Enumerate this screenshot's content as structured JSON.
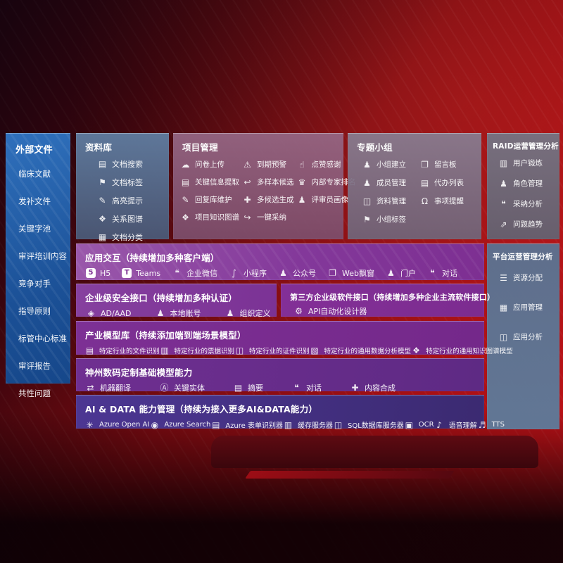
{
  "colors": {
    "background_red": "#a80f14",
    "sidebar_blue": "#2a66b0",
    "row_purple": "#7d2f92",
    "aidata_indigo": "#43307f",
    "panel_slate": "#5f7b99"
  },
  "sidebar": {
    "title": "外部文件",
    "items": [
      {
        "label": "临床文献"
      },
      {
        "label": "发补文件"
      },
      {
        "label": "关键字池"
      },
      {
        "label": "审评培训内容"
      },
      {
        "label": "竞争对手"
      },
      {
        "label": "指导原则"
      },
      {
        "label": "标管中心标准"
      },
      {
        "label": "审评报告"
      },
      {
        "label": "共性问题"
      }
    ]
  },
  "library": {
    "title": "资料库",
    "items": [
      {
        "icon": "▤",
        "icon_name": "doc-search-icon",
        "label": "文档搜索"
      },
      {
        "icon": "⚑",
        "icon_name": "doc-tag-icon",
        "label": "文档标签"
      },
      {
        "icon": "✎",
        "icon_name": "highlight-icon",
        "label": "高亮提示"
      },
      {
        "icon": "❖",
        "icon_name": "relation-graph-icon",
        "label": "关系图谱"
      },
      {
        "icon": "▦",
        "icon_name": "doc-classify-icon",
        "label": "文档分类"
      }
    ]
  },
  "project": {
    "title": "项目管理",
    "items": [
      {
        "icon": "☁",
        "icon_name": "upload-cloud-icon",
        "label": "问卷上传"
      },
      {
        "icon": "⚠",
        "icon_name": "alarm-icon",
        "label": "到期预警"
      },
      {
        "icon": "☝",
        "icon_name": "thumbs-up-icon",
        "label": "点赞感谢"
      },
      {
        "icon": "▤",
        "icon_name": "info-extract-icon",
        "label": "关键信息提取"
      },
      {
        "icon": "↩",
        "icon_name": "multi-sample-icon",
        "label": "多样本候选"
      },
      {
        "icon": "♛",
        "icon_name": "expert-ranking-icon",
        "label": "内部专家排名"
      },
      {
        "icon": "✎",
        "icon_name": "reply-maintain-icon",
        "label": "回复库维护"
      },
      {
        "icon": "✚",
        "icon_name": "multi-generate-icon",
        "label": "多候选生成"
      },
      {
        "icon": "♟",
        "icon_name": "reviewer-portrait-icon",
        "label": "评审员画像"
      },
      {
        "icon": "❖",
        "icon_name": "project-knowledge-graph-icon",
        "label": "项目知识图谱"
      },
      {
        "icon": "↪",
        "icon_name": "one-click-adopt-icon",
        "label": "一键采纳"
      }
    ]
  },
  "topic": {
    "title": "专题小组",
    "items": [
      {
        "icon": "♟",
        "icon_name": "group-create-icon",
        "label": "小组建立"
      },
      {
        "icon": "❐",
        "icon_name": "message-board-icon",
        "label": "留言板"
      },
      {
        "icon": "♟",
        "icon_name": "member-manage-icon",
        "label": "成员管理"
      },
      {
        "icon": "▤",
        "icon_name": "todo-list-icon",
        "label": "代办列表"
      },
      {
        "icon": "◫",
        "icon_name": "material-manage-icon",
        "label": "资料管理"
      },
      {
        "icon": "Ω",
        "icon_name": "bell-icon",
        "label": "事项提醒"
      },
      {
        "icon": "⚑",
        "icon_name": "group-tag-icon",
        "label": "小组标签"
      }
    ]
  },
  "raid": {
    "title": "RAID运营管理分析",
    "items": [
      {
        "icon": "▥",
        "icon_name": "user-card-icon",
        "label": "用户锻炼"
      },
      {
        "icon": "♟",
        "icon_name": "role-manage-icon",
        "label": "角色管理"
      },
      {
        "icon": "❝",
        "icon_name": "adopt-analysis-icon",
        "label": "采纳分析"
      },
      {
        "icon": "⇗",
        "icon_name": "trend-chart-icon",
        "label": "问题趋势"
      }
    ]
  },
  "platform": {
    "title": "平台运营管理分析",
    "items": [
      {
        "icon": "☰",
        "icon_name": "resource-allocate-icon",
        "label": "资源分配"
      },
      {
        "icon": "▦",
        "icon_name": "app-manage-icon",
        "label": "应用管理"
      },
      {
        "icon": "◫",
        "icon_name": "app-analysis-icon",
        "label": "应用分析"
      }
    ]
  },
  "interaction": {
    "title": "应用交互（持续增加多种客户端）",
    "items": [
      {
        "icon": "5",
        "icon_name": "html5-icon",
        "label": "H5"
      },
      {
        "icon": "T",
        "icon_name": "teams-icon",
        "label": "Teams"
      },
      {
        "icon": "❝",
        "icon_name": "wecom-icon",
        "label": "企业微信"
      },
      {
        "icon": "∫",
        "icon_name": "miniprogram-icon",
        "label": "小程序"
      },
      {
        "icon": "♟",
        "icon_name": "official-account-icon",
        "label": "公众号"
      },
      {
        "icon": "❐",
        "icon_name": "web-popup-icon",
        "label": "Web飘窗"
      },
      {
        "icon": "♟",
        "icon_name": "portal-icon",
        "label": "门户"
      },
      {
        "icon": "❝",
        "icon_name": "dialog-icon",
        "label": "对话"
      }
    ]
  },
  "security": {
    "title": "企业级安全接口（持续增加多种认证）",
    "items": [
      {
        "icon": "◈",
        "icon_name": "ad-aad-icon",
        "label": "AD/AAD"
      },
      {
        "icon": "♟",
        "icon_name": "local-account-icon",
        "label": "本地账号"
      },
      {
        "icon": "♟",
        "icon_name": "org-define-icon",
        "label": "组织定义"
      }
    ]
  },
  "thirdparty": {
    "title": "第三方企业级软件接口（持续增加多种企业主流软件接口）",
    "items": [
      {
        "icon": "⚙",
        "icon_name": "api-designer-icon",
        "label": "API自动化设计器"
      }
    ]
  },
  "industry": {
    "title": "产业模型库（持续添加端到端场景模型）",
    "items": [
      {
        "icon": "▤",
        "icon_name": "file-recognition-icon",
        "label": "特定行业的文件识别"
      },
      {
        "icon": "▥",
        "icon_name": "invoice-recognition-icon",
        "label": "特定行业的票据识别"
      },
      {
        "icon": "◫",
        "icon_name": "id-recognition-icon",
        "label": "特定行业的证件识别"
      },
      {
        "icon": "▧",
        "icon_name": "data-analysis-model-icon",
        "label": "特定行业的通用数据分析模型"
      },
      {
        "icon": "❖",
        "icon_name": "knowledge-graph-model-icon",
        "label": "特定行业的通用知识图谱模型"
      }
    ]
  },
  "foundation": {
    "title": "神州数码定制基础模型能力",
    "items": [
      {
        "icon": "⇄",
        "icon_name": "translate-icon",
        "label": "机器翻译"
      },
      {
        "icon": "Ⓐ",
        "icon_name": "key-entity-icon",
        "label": "关键实体"
      },
      {
        "icon": "▤",
        "icon_name": "summary-icon",
        "label": "摘要"
      },
      {
        "icon": "❝",
        "icon_name": "dialog-icon",
        "label": "对话"
      },
      {
        "icon": "✚",
        "icon_name": "content-synthesis-icon",
        "label": "内容合成"
      }
    ]
  },
  "aidata": {
    "title": "AI & DATA 能力管理（持续为接入更多AI&DATA能力）",
    "items": [
      {
        "icon": "✳",
        "icon_name": "azure-openai-icon",
        "label": "Azure Open AI"
      },
      {
        "icon": "◉",
        "icon_name": "azure-search-icon",
        "label": "Azure Search"
      },
      {
        "icon": "▤",
        "icon_name": "form-recognizer-icon",
        "label": "Azure 表单识别器"
      },
      {
        "icon": "▥",
        "icon_name": "cache-server-icon",
        "label": "缓存服务器"
      },
      {
        "icon": "◫",
        "icon_name": "sql-server-icon",
        "label": "SQL数据库服务器"
      },
      {
        "icon": "▣",
        "icon_name": "ocr-icon",
        "label": "OCR"
      },
      {
        "icon": "♪",
        "icon_name": "speech-understand-icon",
        "label": "语音理解"
      },
      {
        "icon": "♬",
        "icon_name": "tts-icon",
        "label": "TTS"
      }
    ]
  }
}
